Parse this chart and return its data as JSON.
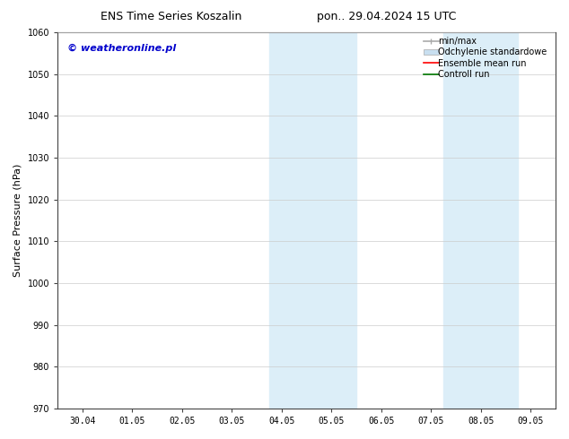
{
  "title_left": "ENS Time Series Koszalin",
  "title_right": "pon.. 29.04.2024 15 UTC",
  "ylabel": "Surface Pressure (hPa)",
  "ylim": [
    970,
    1060
  ],
  "yticks": [
    970,
    980,
    990,
    1000,
    1010,
    1020,
    1030,
    1040,
    1050,
    1060
  ],
  "xtick_labels": [
    "30.04",
    "01.05",
    "02.05",
    "03.05",
    "04.05",
    "05.05",
    "06.05",
    "07.05",
    "08.05",
    "09.05"
  ],
  "x_values": [
    0,
    1,
    2,
    3,
    4,
    5,
    6,
    7,
    8,
    9
  ],
  "xlim": [
    -0.5,
    9.5
  ],
  "bg_color": "#ffffff",
  "shaded_regions": [
    {
      "x_start": 3.75,
      "x_end": 5.5,
      "color": "#dceef8"
    },
    {
      "x_start": 7.25,
      "x_end": 8.75,
      "color": "#dceef8"
    }
  ],
  "watermark_text": "© weatheronline.pl",
  "watermark_color": "#0000cc",
  "legend_entries": [
    {
      "label": "min/max",
      "color": "#aaaaaa"
    },
    {
      "label": "Odchylenie standardowe",
      "color": "#c8dff0"
    },
    {
      "label": "Ensemble mean run",
      "color": "#ff0000"
    },
    {
      "label": "Controll run",
      "color": "#007700"
    }
  ],
  "grid_color": "#cccccc",
  "title_fontsize": 9,
  "tick_fontsize": 7,
  "ylabel_fontsize": 8,
  "watermark_fontsize": 8,
  "legend_fontsize": 7
}
